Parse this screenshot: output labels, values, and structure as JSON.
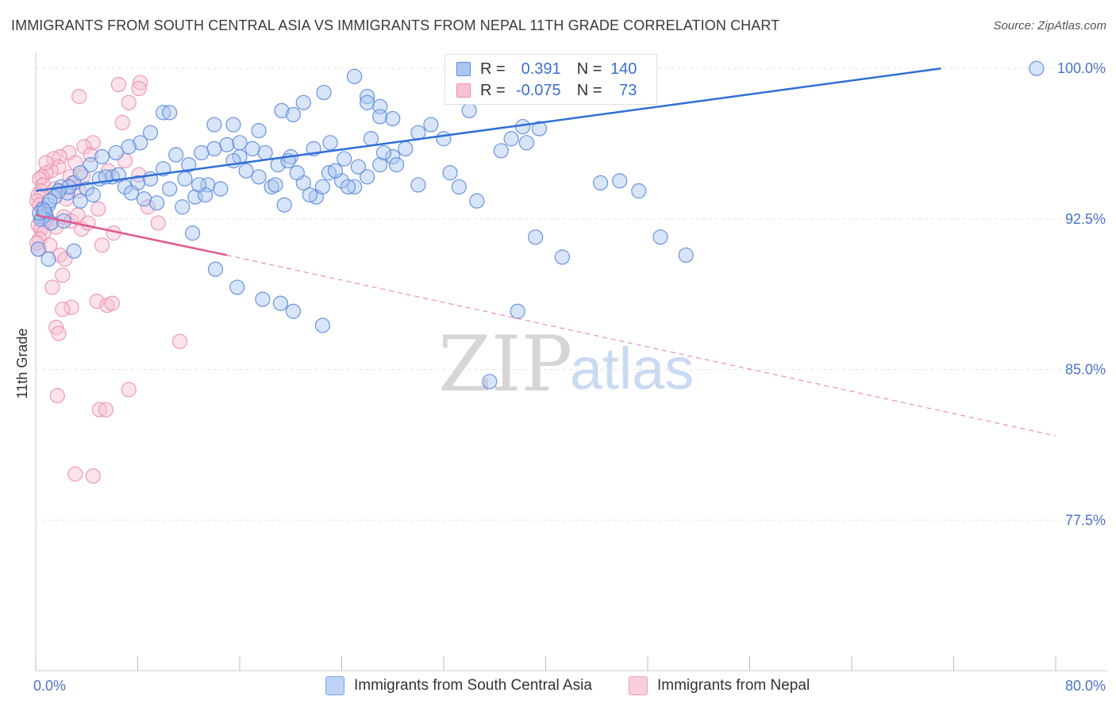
{
  "title": "IMMIGRANTS FROM SOUTH CENTRAL ASIA VS IMMIGRANTS FROM NEPAL 11TH GRADE CORRELATION CHART",
  "source": "Source: ZipAtlas.com",
  "watermark": {
    "zip": "ZIP",
    "atlas": "atlas"
  },
  "legend_top": {
    "rows": [
      {
        "r_label": "R =",
        "r_value": "0.391",
        "n_label": "N =",
        "n_value": "140"
      },
      {
        "r_label": "R =",
        "r_value": "-0.075",
        "n_label": "N =",
        "n_value": "73"
      }
    ]
  },
  "legend_bottom": {
    "items": [
      "Immigrants from South Central Asia",
      "Immigrants from Nepal"
    ]
  },
  "colors": {
    "series1_fill": "#a9c5f0",
    "series1_stroke": "#5a8ae0",
    "series1_line": "#2f6fd6",
    "series2_fill": "#f7c2d3",
    "series2_stroke": "#ec8fb0",
    "series2_line": "#e05a8c",
    "tick_text": "#4a74c9",
    "grid": "#e4e4e4"
  },
  "chart_data": {
    "type": "scatter",
    "title": "IMMIGRANTS FROM SOUTH CENTRAL ASIA VS IMMIGRANTS FROM NEPAL 11TH GRADE CORRELATION CHART",
    "xlabel": "",
    "ylabel": "11th Grade",
    "xlim": [
      0,
      80
    ],
    "ylim": [
      70,
      100.8
    ],
    "x_tick_labels": [
      "0.0%",
      "80.0%"
    ],
    "y_ticks": [
      77.5,
      85.0,
      92.5,
      100.0
    ],
    "y_tick_labels": [
      "77.5%",
      "85.0%",
      "92.5%",
      "100.0%"
    ],
    "grid": true,
    "legend_position": "top-center and bottom",
    "series": [
      {
        "name": "Immigrants from South Central Asia",
        "r": 0.391,
        "n": 140,
        "trend": {
          "x": [
            0,
            71
          ],
          "y": [
            93.9,
            100.0
          ],
          "style": "solid"
        },
        "points": [
          [
            25,
            99.6
          ],
          [
            26,
            98.6
          ],
          [
            26,
            98.3
          ],
          [
            27,
            98.1
          ],
          [
            27,
            97.6
          ],
          [
            28,
            97.5
          ],
          [
            34,
            97.9
          ],
          [
            36,
            98.7
          ],
          [
            37,
            99.0
          ],
          [
            40.5,
            100.0
          ],
          [
            38.5,
            96.3
          ],
          [
            39.5,
            97.0
          ],
          [
            43,
            99.0
          ],
          [
            44,
            100.1
          ],
          [
            45,
            99.8
          ],
          [
            46,
            99.5
          ],
          [
            47,
            98.6
          ],
          [
            31,
            97.2
          ],
          [
            30,
            96.8
          ],
          [
            32,
            96.5
          ],
          [
            29,
            96.0
          ],
          [
            28,
            95.6
          ],
          [
            27,
            95.2
          ],
          [
            26,
            94.6
          ],
          [
            25,
            94.1
          ],
          [
            24,
            94.4
          ],
          [
            23,
            94.8
          ],
          [
            22,
            93.6
          ],
          [
            21,
            94.3
          ],
          [
            20,
            95.6
          ],
          [
            19,
            95.2
          ],
          [
            18,
            95.8
          ],
          [
            17,
            96.0
          ],
          [
            16,
            95.6
          ],
          [
            15,
            96.2
          ],
          [
            14,
            96.0
          ],
          [
            13,
            95.8
          ],
          [
            12,
            95.2
          ],
          [
            11,
            95.7
          ],
          [
            10,
            95.0
          ],
          [
            9,
            94.5
          ],
          [
            8,
            94.3
          ],
          [
            7,
            94.1
          ],
          [
            6,
            94.6
          ],
          [
            5,
            94.5
          ],
          [
            4,
            94.0
          ],
          [
            3,
            94.3
          ],
          [
            2,
            94.1
          ],
          [
            1,
            93.2
          ],
          [
            0.8,
            92.7
          ],
          [
            0.6,
            93.0
          ],
          [
            0.5,
            92.6
          ],
          [
            0.4,
            92.5
          ],
          [
            0.3,
            92.8
          ],
          [
            1.2,
            92.3
          ],
          [
            1.5,
            93.6
          ],
          [
            2.2,
            92.4
          ],
          [
            2.5,
            93.8
          ],
          [
            3.5,
            93.4
          ],
          [
            4.5,
            93.7
          ],
          [
            5.5,
            94.6
          ],
          [
            6.5,
            94.7
          ],
          [
            7.5,
            93.8
          ],
          [
            8.5,
            93.5
          ],
          [
            9.5,
            93.3
          ],
          [
            10.5,
            94.0
          ],
          [
            11.5,
            93.1
          ],
          [
            12.5,
            93.6
          ],
          [
            13.5,
            94.2
          ],
          [
            14.5,
            94.0
          ],
          [
            15.5,
            95.4
          ],
          [
            16.5,
            94.9
          ],
          [
            17.5,
            94.6
          ],
          [
            18.5,
            94.1
          ],
          [
            19.5,
            93.2
          ],
          [
            20.5,
            94.8
          ],
          [
            21.5,
            93.7
          ],
          [
            22.5,
            94.1
          ],
          [
            23.5,
            94.9
          ],
          [
            24.5,
            94.1
          ],
          [
            1,
            90.5
          ],
          [
            3,
            90.9
          ],
          [
            12.3,
            91.8
          ],
          [
            14.1,
            90.0
          ],
          [
            15.8,
            89.1
          ],
          [
            17.8,
            88.5
          ],
          [
            19.2,
            88.3
          ],
          [
            20.2,
            87.9
          ],
          [
            22.5,
            87.2
          ],
          [
            37.8,
            87.9
          ],
          [
            39.2,
            91.6
          ],
          [
            41.3,
            90.6
          ],
          [
            35.6,
            84.4
          ],
          [
            49,
            91.6
          ],
          [
            51,
            90.7
          ],
          [
            44.3,
            94.3
          ],
          [
            45.8,
            94.4
          ],
          [
            47.3,
            93.9
          ],
          [
            30,
            94.2
          ],
          [
            32.5,
            94.8
          ],
          [
            33.2,
            94.1
          ],
          [
            34.6,
            93.4
          ],
          [
            36.5,
            95.9
          ],
          [
            37.3,
            96.5
          ],
          [
            38.2,
            97.1
          ],
          [
            14,
            97.2
          ],
          [
            15.5,
            97.2
          ],
          [
            16,
            96.3
          ],
          [
            17.5,
            96.9
          ],
          [
            19.3,
            97.9
          ],
          [
            20.2,
            97.7
          ],
          [
            21,
            98.3
          ],
          [
            22.6,
            98.8
          ],
          [
            10,
            97.8
          ],
          [
            10.5,
            97.8
          ],
          [
            9,
            96.8
          ],
          [
            8.2,
            96.3
          ],
          [
            7.3,
            96.1
          ],
          [
            6.3,
            95.8
          ],
          [
            5.2,
            95.6
          ],
          [
            4.3,
            95.2
          ],
          [
            3.5,
            94.8
          ],
          [
            2.6,
            94.1
          ],
          [
            1.8,
            93.9
          ],
          [
            1.1,
            93.4
          ],
          [
            0.7,
            92.9
          ],
          [
            0.2,
            91.0
          ],
          [
            13.3,
            93.7
          ],
          [
            12.8,
            94.2
          ],
          [
            11.7,
            94.5
          ],
          [
            18.8,
            94.2
          ],
          [
            19.8,
            95.4
          ],
          [
            21.8,
            96.0
          ],
          [
            23.1,
            96.3
          ],
          [
            24.2,
            95.5
          ],
          [
            25.3,
            95.1
          ],
          [
            26.3,
            96.5
          ],
          [
            27.3,
            95.8
          ],
          [
            28.3,
            95.2
          ],
          [
            78.5,
            100.0
          ]
        ]
      },
      {
        "name": "Immigrants from Nepal",
        "r": -0.075,
        "n": 73,
        "trend": {
          "x": [
            0,
            15
          ],
          "y": [
            92.7,
            90.7
          ],
          "style": "solid"
        },
        "trend_extension": {
          "x": [
            15,
            80
          ],
          "y": [
            90.7,
            81.7
          ],
          "style": "dashed"
        },
        "points": [
          [
            6.5,
            99.2
          ],
          [
            8.2,
            99.3
          ],
          [
            8.1,
            99.0
          ],
          [
            3.4,
            98.6
          ],
          [
            7.3,
            98.3
          ],
          [
            6.8,
            97.3
          ],
          [
            4.5,
            96.3
          ],
          [
            3.8,
            96.1
          ],
          [
            2.6,
            95.8
          ],
          [
            1.9,
            95.6
          ],
          [
            1.4,
            95.5
          ],
          [
            1.8,
            95.1
          ],
          [
            1.2,
            94.9
          ],
          [
            0.8,
            94.8
          ],
          [
            0.5,
            94.6
          ],
          [
            0.3,
            94.5
          ],
          [
            0.6,
            94.2
          ],
          [
            0.4,
            93.9
          ],
          [
            0.2,
            93.7
          ],
          [
            0.1,
            93.4
          ],
          [
            0.3,
            93.2
          ],
          [
            0.5,
            93.0
          ],
          [
            0.7,
            92.7
          ],
          [
            0.9,
            92.5
          ],
          [
            1.2,
            92.3
          ],
          [
            1.6,
            92.1
          ],
          [
            2.2,
            92.6
          ],
          [
            2.8,
            92.4
          ],
          [
            3.3,
            92.7
          ],
          [
            0.2,
            92.2
          ],
          [
            0.4,
            92.0
          ],
          [
            0.6,
            91.8
          ],
          [
            0.3,
            91.5
          ],
          [
            0.2,
            91.0
          ],
          [
            1.1,
            91.2
          ],
          [
            1.9,
            90.7
          ],
          [
            2.3,
            90.5
          ],
          [
            2.1,
            89.7
          ],
          [
            1.3,
            89.1
          ],
          [
            6.1,
            91.8
          ],
          [
            5.2,
            91.2
          ],
          [
            4.9,
            93.0
          ],
          [
            5.7,
            94.9
          ],
          [
            4.3,
            95.7
          ],
          [
            3.1,
            95.3
          ],
          [
            2.7,
            94.6
          ],
          [
            2.9,
            94.3
          ],
          [
            3.4,
            93.9
          ],
          [
            7.0,
            95.4
          ],
          [
            8.1,
            94.7
          ],
          [
            8.8,
            93.1
          ],
          [
            9.6,
            92.3
          ],
          [
            4.8,
            88.4
          ],
          [
            5.6,
            88.2
          ],
          [
            6.0,
            88.3
          ],
          [
            2.8,
            88.1
          ],
          [
            2.1,
            88.0
          ],
          [
            1.6,
            87.1
          ],
          [
            1.8,
            86.8
          ],
          [
            11.3,
            86.4
          ],
          [
            1.7,
            83.7
          ],
          [
            5.0,
            83.0
          ],
          [
            5.5,
            83.0
          ],
          [
            7.3,
            84.0
          ],
          [
            3.1,
            79.8
          ],
          [
            4.5,
            79.7
          ],
          [
            3.6,
            92.0
          ],
          [
            4.1,
            92.3
          ],
          [
            0.8,
            95.3
          ],
          [
            1.5,
            94.0
          ],
          [
            2.4,
            93.5
          ],
          [
            3.7,
            94.6
          ],
          [
            0.1,
            91.3
          ]
        ]
      }
    ]
  }
}
